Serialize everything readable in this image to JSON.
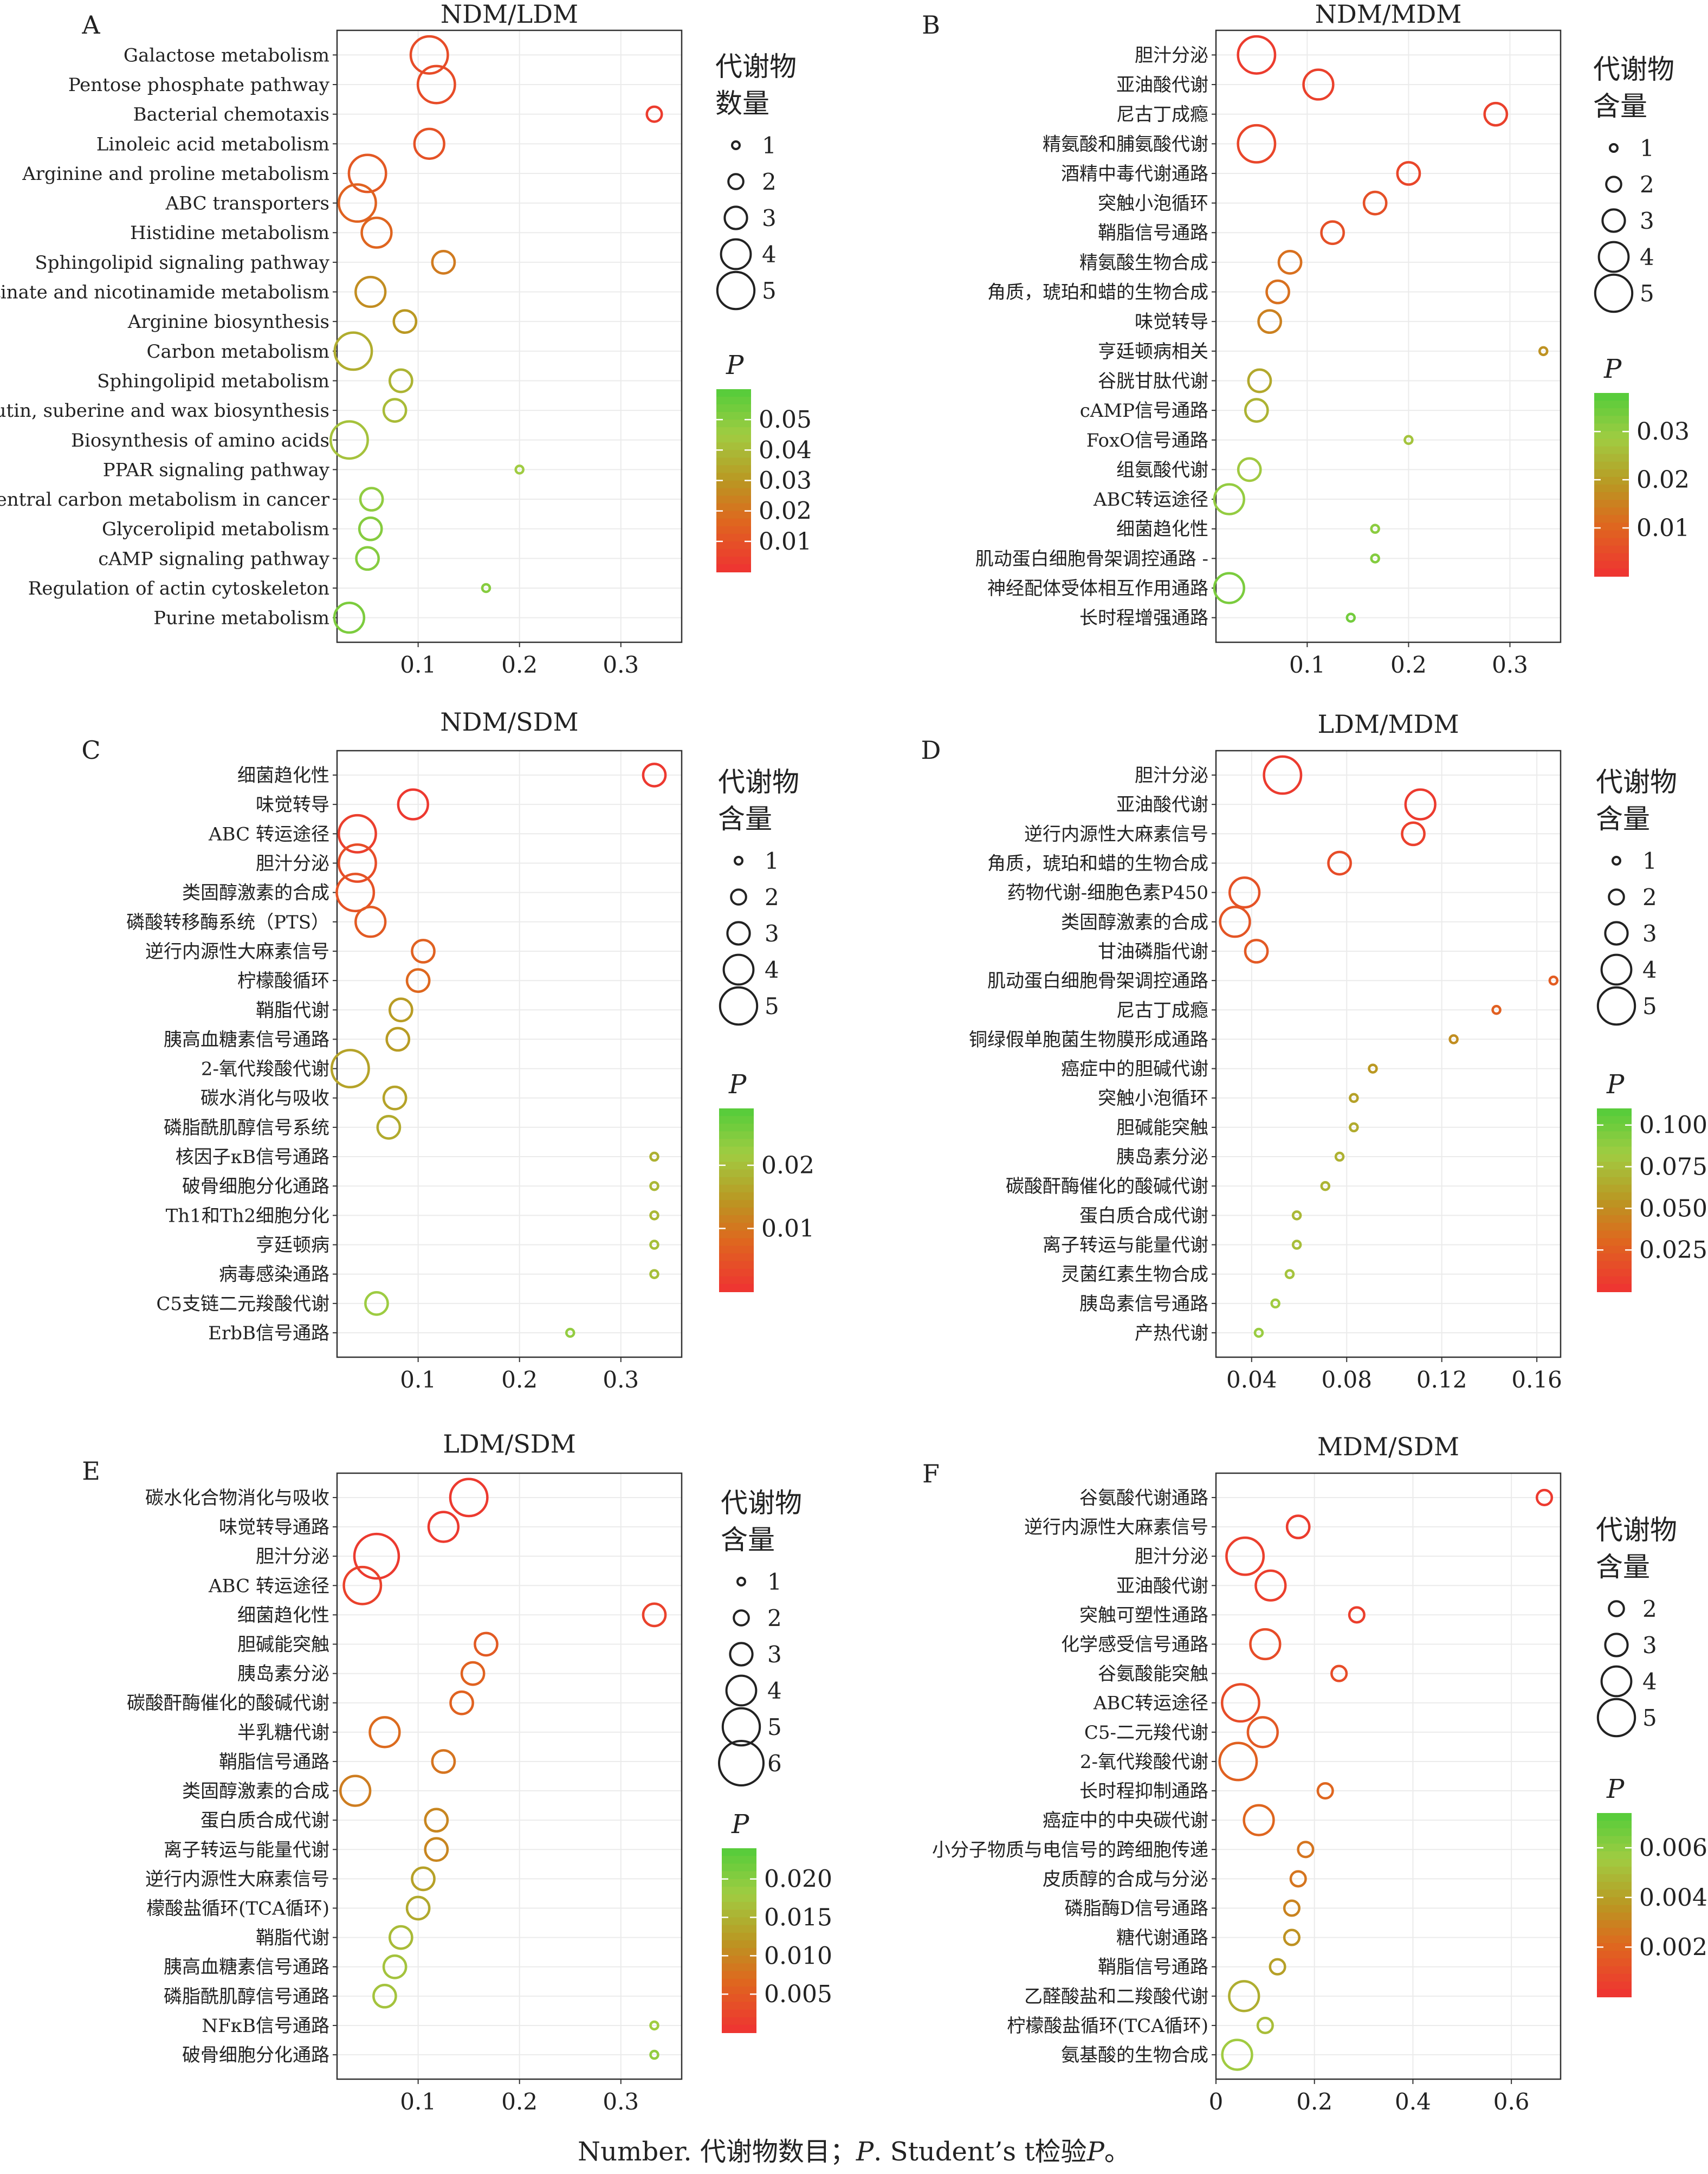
{
  "caption_parts": [
    "Number. 代谢物数目；",
    "P",
    ". Student’s t检验",
    "P",
    "。"
  ],
  "panels": [
    {
      "letter": "A",
      "size_legend_title": [
        "代谢物",
        "数量"
      ],
      "size_legend": [
        "1",
        "2",
        "3",
        "4",
        "5"
      ],
      "p_legend_title": "P",
      "chart_data": {
        "type": "scatter",
        "title": "NDM/LDM",
        "xlabel": "",
        "ylabel": "",
        "xlim": [
          0.02,
          0.36
        ],
        "xticks": [
          0.1,
          0.2,
          0.3
        ],
        "xtick_labels": [
          "0.1",
          "0.2",
          "0.3"
        ],
        "p_range": [
          0,
          0.06
        ],
        "p_ticks": [
          0.05,
          0.04,
          0.03,
          0.02,
          0.01
        ],
        "p_tick_labels": [
          "0.05",
          "0.04",
          "0.03",
          "0.02",
          "0.01"
        ],
        "grid": true,
        "legend": "right",
        "categories": [
          "Galactose metabolism",
          "Pentose phosphate pathway",
          "Bacterial chemotaxis",
          "Linoleic acid metabolism",
          "Arginine and proline metabolism",
          "ABC transporters",
          "Histidine metabolism",
          "Sphingolipid signaling pathway",
          "Nicotinate and nicotinamide metabolism",
          "Arginine biosynthesis",
          "Carbon metabolism",
          "Sphingolipid metabolism",
          "Cutin, suberine and wax biosynthesis",
          "Biosynthesis of amino acids",
          "PPAR signaling pathway",
          "Central carbon metabolism in cancer",
          "Glycerolipid metabolism",
          "cAMP signaling pathway",
          "Regulation of actin cytoskeleton",
          "Purine metabolism"
        ],
        "x": [
          0.111,
          0.118,
          0.333,
          0.111,
          0.05,
          0.04,
          0.059,
          0.125,
          0.053,
          0.087,
          0.036,
          0.083,
          0.077,
          0.032,
          0.2,
          0.054,
          0.053,
          0.05,
          0.167,
          0.032
        ],
        "size": [
          5,
          5,
          2,
          4,
          5,
          5,
          4,
          3,
          4,
          3,
          5,
          3,
          3,
          5,
          1,
          3,
          3,
          3,
          1,
          4
        ],
        "p": [
          0.008,
          0.008,
          0.003,
          0.01,
          0.012,
          0.015,
          0.016,
          0.022,
          0.027,
          0.03,
          0.036,
          0.038,
          0.04,
          0.042,
          0.045,
          0.048,
          0.05,
          0.05,
          0.05,
          0.052
        ]
      }
    },
    {
      "letter": "B",
      "size_legend_title": [
        "代谢物",
        "含量"
      ],
      "size_legend": [
        "1",
        "2",
        "3",
        "4",
        "5"
      ],
      "p_legend_title": "P",
      "chart_data": {
        "type": "scatter",
        "title": "NDM/MDM",
        "xlabel": "",
        "ylabel": "",
        "xlim": [
          0.01,
          0.35
        ],
        "xticks": [
          0.1,
          0.2,
          0.3
        ],
        "xtick_labels": [
          "0.1",
          "0.2",
          "0.3"
        ],
        "p_range": [
          0,
          0.038
        ],
        "p_ticks": [
          0.03,
          0.02,
          0.01
        ],
        "p_tick_labels": [
          "0.03",
          "0.02",
          "0.01"
        ],
        "grid": true,
        "legend": "right",
        "categories": [
          "胆汁分泌",
          "亚油酸代谢",
          "尼古丁成瘾",
          "精氨酸和脯氨酸代谢",
          "酒精中毒代谢通路",
          "突触小泡循环",
          "鞘脂信号通路",
          "精氨酸生物合成",
          "角质，琥珀和蜡的生物合成",
          "味觉转导",
          "亨廷顿病相关",
          "谷胱甘肽代谢",
          "cAMP信号通路",
          "FoxO信号通路",
          "组氨酸代谢",
          "ABC转运途径",
          "细菌趋化性",
          "肌动蛋白细胞骨架调控通路 -",
          "神经配体受体相互作用通路",
          "长时程增强通路"
        ],
        "x": [
          0.05,
          0.111,
          0.286,
          0.05,
          0.2,
          0.167,
          0.125,
          0.083,
          0.071,
          0.063,
          0.333,
          0.053,
          0.05,
          0.2,
          0.043,
          0.023,
          0.167,
          0.167,
          0.023,
          0.143
        ],
        "size": [
          5,
          4,
          3,
          5,
          3,
          3,
          3,
          3,
          3,
          3,
          1,
          3,
          3,
          1,
          3,
          4,
          1,
          1,
          4,
          1
        ],
        "p": [
          0.002,
          0.003,
          0.003,
          0.004,
          0.004,
          0.006,
          0.006,
          0.012,
          0.012,
          0.015,
          0.018,
          0.022,
          0.024,
          0.027,
          0.028,
          0.03,
          0.031,
          0.032,
          0.033,
          0.034
        ]
      }
    },
    {
      "letter": "C",
      "size_legend_title": [
        "代谢物",
        "含量"
      ],
      "size_legend": [
        "1",
        "2",
        "3",
        "4",
        "5"
      ],
      "p_legend_title": "P",
      "chart_data": {
        "type": "scatter",
        "title": "NDM/SDM",
        "xlabel": "",
        "ylabel": "",
        "xlim": [
          0.02,
          0.36
        ],
        "xticks": [
          0.1,
          0.2,
          0.3
        ],
        "xtick_labels": [
          "0.1",
          "0.2",
          "0.3"
        ],
        "p_range": [
          0,
          0.029
        ],
        "p_ticks": [
          0.02,
          0.01
        ],
        "p_tick_labels": [
          "0.02",
          "0.01"
        ],
        "grid": true,
        "legend": "right",
        "categories": [
          "细菌趋化性",
          "味觉转导",
          "ABC 转运途径",
          "胆汁分泌",
          "类固醇激素的合成",
          "磷酸转移酶系统（PTS）",
          "逆行内源性大麻素信号",
          "柠檬酸循环",
          "鞘脂代谢",
          "胰高血糖素信号通路",
          "2-氧代羧酸代谢",
          "碳水消化与吸收",
          "磷脂酰肌醇信号系统",
          "核因子κB信号通路",
          "破骨细胞分化通路",
          "Th1和Th2细胞分化",
          "亨廷顿病",
          "病毒感染通路",
          "C5支链二元羧酸代谢",
          "ErbB信号通路"
        ],
        "x": [
          0.333,
          0.095,
          0.04,
          0.04,
          0.038,
          0.053,
          0.105,
          0.1,
          0.083,
          0.08,
          0.033,
          0.077,
          0.071,
          0.333,
          0.333,
          0.333,
          0.333,
          0.333,
          0.059,
          0.25
        ],
        "size": [
          3,
          4,
          5,
          5,
          5,
          4,
          3,
          3,
          3,
          3,
          5,
          3,
          3,
          1,
          1,
          1,
          1,
          1,
          3,
          1
        ],
        "p": [
          0.001,
          0.001,
          0.002,
          0.004,
          0.005,
          0.006,
          0.007,
          0.008,
          0.015,
          0.015,
          0.016,
          0.016,
          0.017,
          0.018,
          0.019,
          0.019,
          0.02,
          0.02,
          0.022,
          0.023
        ]
      }
    },
    {
      "letter": "D",
      "size_legend_title": [
        "代谢物",
        "含量"
      ],
      "size_legend": [
        "1",
        "2",
        "3",
        "4",
        "5"
      ],
      "p_legend_title": "P",
      "chart_data": {
        "type": "scatter",
        "title": "LDM/MDM",
        "xlabel": "",
        "ylabel": "",
        "xlim": [
          0.025,
          0.17
        ],
        "xticks": [
          0.04,
          0.08,
          0.12,
          0.16
        ],
        "xtick_labels": [
          "0.04",
          "0.08",
          "0.12",
          "0.16"
        ],
        "p_range": [
          0,
          0.11
        ],
        "p_ticks": [
          0.1,
          0.075,
          0.05,
          0.025
        ],
        "p_tick_labels": [
          "0.100",
          "0.075",
          "0.050",
          "0.025"
        ],
        "grid": true,
        "legend": "right",
        "categories": [
          "胆汁分泌",
          "亚油酸代谢",
          "逆行内源性大麻素信号",
          "角质，琥珀和蜡的生物合成",
          "药物代谢-细胞色素P450",
          "类固醇激素的合成",
          "甘油磷脂代谢",
          "肌动蛋白细胞骨架调控通路",
          "尼古丁成瘾",
          "铜绿假单胞菌生物膜形成通路",
          "癌症中的胆碱代谢",
          "突触小泡循环",
          "胆碱能突触",
          "胰岛素分泌",
          "碳酸酐酶催化的酸碱代谢",
          "蛋白质合成代谢",
          "离子转运与能量代谢",
          "灵菌红素生物合成",
          "胰岛素信号通路",
          "产热代谢"
        ],
        "x": [
          0.053,
          0.111,
          0.108,
          0.077,
          0.037,
          0.033,
          0.042,
          0.167,
          0.143,
          0.125,
          0.091,
          0.083,
          0.083,
          0.077,
          0.071,
          0.059,
          0.059,
          0.056,
          0.05,
          0.043
        ],
        "size": [
          5,
          4,
          3,
          3,
          4,
          4,
          3,
          1,
          1,
          1,
          1,
          1,
          1,
          1,
          1,
          1,
          1,
          1,
          1,
          1
        ],
        "p": [
          0.005,
          0.005,
          0.008,
          0.015,
          0.018,
          0.02,
          0.022,
          0.024,
          0.026,
          0.05,
          0.055,
          0.06,
          0.065,
          0.068,
          0.07,
          0.072,
          0.075,
          0.078,
          0.082,
          0.085
        ]
      }
    },
    {
      "letter": "E",
      "size_legend_title": [
        "代谢物",
        "含量"
      ],
      "size_legend": [
        "1",
        "2",
        "3",
        "4",
        "5",
        "6"
      ],
      "p_legend_title": "P",
      "chart_data": {
        "type": "scatter",
        "title": "LDM/SDM",
        "xlabel": "",
        "ylabel": "",
        "xlim": [
          0.02,
          0.36
        ],
        "xticks": [
          0.1,
          0.2,
          0.3
        ],
        "xtick_labels": [
          "0.1",
          "0.2",
          "0.3"
        ],
        "p_range": [
          0,
          0.024
        ],
        "p_ticks": [
          0.02,
          0.015,
          0.01,
          0.005
        ],
        "p_tick_labels": [
          "0.020",
          "0.015",
          "0.010",
          "0.005"
        ],
        "grid": true,
        "legend": "right",
        "categories": [
          "碳水化合物消化与吸收",
          "味觉转导通路",
          "胆汁分泌",
          "ABC 转运途径",
          "细菌趋化性",
          "胆碱能突触",
          "胰岛素分泌",
          "碳酸酐酶催化的酸碱代谢",
          "半乳糖代谢",
          "鞘脂信号通路",
          "类固醇激素的合成",
          "蛋白质合成代谢",
          "离子转运与能量代谢",
          "逆行内源性大麻素信号",
          "檬酸盐循环(TCA循环)",
          "鞘脂代谢",
          "胰高血糖素信号通路",
          "磷脂酰肌醇信号通路",
          "NFκB信号通路",
          "破骨细胞分化通路"
        ],
        "x": [
          0.15,
          0.125,
          0.059,
          0.045,
          0.333,
          0.167,
          0.154,
          0.143,
          0.067,
          0.125,
          0.038,
          0.118,
          0.118,
          0.105,
          0.1,
          0.083,
          0.077,
          0.067,
          0.333,
          0.333
        ],
        "size": [
          5,
          4,
          6,
          5,
          3,
          3,
          3,
          3,
          4,
          3,
          4,
          3,
          3,
          3,
          3,
          3,
          3,
          3,
          1,
          1
        ],
        "p": [
          0.001,
          0.001,
          0.001,
          0.002,
          0.002,
          0.005,
          0.006,
          0.006,
          0.007,
          0.008,
          0.009,
          0.01,
          0.01,
          0.013,
          0.014,
          0.016,
          0.017,
          0.017,
          0.018,
          0.019
        ]
      }
    },
    {
      "letter": "F",
      "size_legend_title": [
        "代谢物",
        "含量"
      ],
      "size_legend": [
        "2",
        "3",
        "4",
        "5"
      ],
      "p_legend_title": "P",
      "chart_data": {
        "type": "scatter",
        "title": "MDM/SDM",
        "xlabel": "",
        "ylabel": "",
        "xlim": [
          0.0,
          0.7
        ],
        "xticks": [
          0.0,
          0.2,
          0.4,
          0.6
        ],
        "xtick_labels": [
          "0",
          "0.2",
          "0.4",
          "0.6"
        ],
        "p_range": [
          0,
          0.0074
        ],
        "p_ticks": [
          0.006,
          0.004,
          0.002
        ],
        "p_tick_labels": [
          "0.006",
          "0.004",
          "0.002"
        ],
        "grid": true,
        "legend": "right",
        "categories": [
          "谷氨酸代谢通路",
          "逆行内源性大麻素信号",
          "胆汁分泌",
          "亚油酸代谢",
          "突触可塑性通路",
          "化学感受信号通路",
          "谷氨酸能突触",
          "ABC转运途径",
          "C5-二元羧代谢",
          "2-氧代羧酸代谢",
          "长时程抑制通路",
          "癌症中的中央碳代谢",
          "小分子物质与电信号的跨细胞传递",
          "皮质醇的合成与分泌",
          "磷脂酶D信号通路",
          "糖代谢通路",
          "鞘脂信号通路",
          "乙醛酸盐和二羧酸代谢",
          "柠檬酸盐循环(TCA循环)",
          "氨基酸的生物合成"
        ],
        "x": [
          0.667,
          0.167,
          0.059,
          0.111,
          0.286,
          0.1,
          0.25,
          0.05,
          0.095,
          0.045,
          0.222,
          0.087,
          0.182,
          0.167,
          0.154,
          0.154,
          0.125,
          0.057,
          0.1,
          0.043
        ],
        "size": [
          2,
          3,
          5,
          4,
          2,
          4,
          2,
          5,
          4,
          5,
          2,
          4,
          2,
          2,
          2,
          2,
          2,
          4,
          2,
          4
        ],
        "p": [
          0.0003,
          0.0004,
          0.0005,
          0.0005,
          0.0005,
          0.001,
          0.001,
          0.001,
          0.0015,
          0.0018,
          0.002,
          0.002,
          0.0025,
          0.0025,
          0.003,
          0.0035,
          0.004,
          0.0045,
          0.005,
          0.0055
        ]
      }
    }
  ]
}
